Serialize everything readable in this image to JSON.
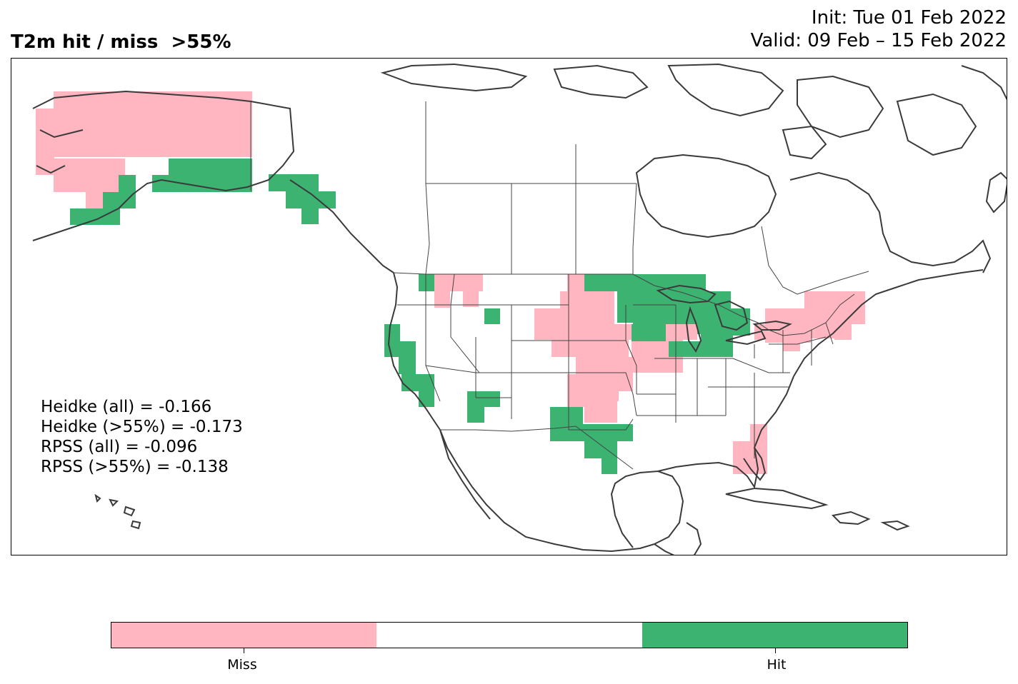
{
  "header": {
    "title": "T2m hit / miss  >55%",
    "init": "Init: Tue 01 Feb 2022",
    "valid": "Valid: 09 Feb – 15 Feb 2022"
  },
  "stats": [
    "Heidke (all) = -0.166",
    "Heidke (>55%) = -0.173",
    "RPSS (all) = -0.096",
    "RPSS (>55%) = -0.138"
  ],
  "colorbar": {
    "colors": [
      "#ffb6c1",
      "#ffffff",
      "#3cb371"
    ],
    "labels": [
      "Miss",
      "Hit"
    ]
  },
  "colors": {
    "miss": "#ffb6c1",
    "hit": "#3cb371",
    "coast": "#3a3a3a",
    "border": "#444444"
  }
}
